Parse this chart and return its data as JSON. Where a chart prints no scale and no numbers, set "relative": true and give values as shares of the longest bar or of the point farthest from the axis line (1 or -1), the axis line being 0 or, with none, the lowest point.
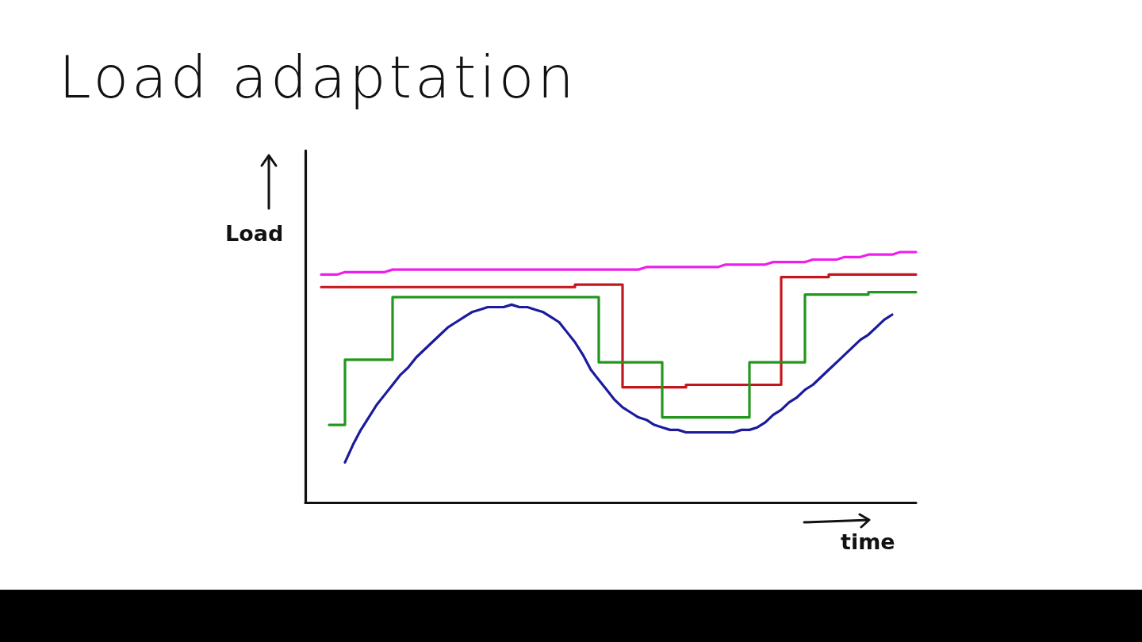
{
  "chart_data": {
    "type": "line",
    "title": "Load adaptation",
    "xlabel": "time",
    "ylabel": "Load",
    "relative": true,
    "marker": "none",
    "categories": [
      null,
      null,
      null,
      null,
      null,
      null,
      null,
      null,
      null,
      null,
      null,
      null,
      null,
      null,
      null,
      null,
      null,
      null,
      null,
      null,
      null,
      null,
      null,
      null,
      null,
      null,
      null,
      null,
      null,
      null,
      null,
      null,
      null,
      null,
      null,
      null,
      null,
      null,
      null,
      null,
      null,
      null,
      null,
      null,
      null,
      null,
      null,
      null,
      null,
      null,
      null,
      null,
      null,
      null,
      null,
      null,
      null,
      null,
      null,
      null,
      null,
      null,
      null,
      null,
      null,
      null,
      null,
      null,
      null,
      null,
      null,
      null,
      null,
      null,
      null,
      null,
      null,
      null
    ],
    "series": [
      {
        "color": "#ee1fee",
        "values": [
          null,
          null,
          0.91,
          0.91,
          0.91,
          0.92,
          0.92,
          0.92,
          0.92,
          0.92,
          0.92,
          0.93,
          0.93,
          0.93,
          0.93,
          0.93,
          0.93,
          0.93,
          0.93,
          0.93,
          0.93,
          0.93,
          0.93,
          0.93,
          0.93,
          0.93,
          0.93,
          0.93,
          0.93,
          0.93,
          0.93,
          0.93,
          0.93,
          0.93,
          0.93,
          0.93,
          0.93,
          0.93,
          0.93,
          0.93,
          0.93,
          0.93,
          0.93,
          0.94,
          0.94,
          0.94,
          0.94,
          0.94,
          0.94,
          0.94,
          0.94,
          0.94,
          0.94,
          0.95,
          0.95,
          0.95,
          0.95,
          0.95,
          0.95,
          0.96,
          0.96,
          0.96,
          0.96,
          0.96,
          0.97,
          0.97,
          0.97,
          0.97,
          0.98,
          0.98,
          0.98,
          0.99,
          0.99,
          0.99,
          0.99,
          1,
          1,
          1
        ]
      },
      {
        "type": "step",
        "color": "#c4161c",
        "values": [
          null,
          null,
          0.86,
          0.86,
          0.86,
          0.86,
          0.86,
          0.86,
          0.86,
          0.86,
          0.86,
          0.86,
          0.86,
          0.86,
          0.86,
          0.86,
          0.86,
          0.86,
          0.86,
          0.86,
          0.86,
          0.86,
          0.86,
          0.86,
          0.86,
          0.86,
          0.86,
          0.86,
          0.86,
          0.86,
          0.86,
          0.86,
          0.86,
          0.86,
          0.87,
          0.87,
          0.87,
          0.87,
          0.87,
          0.87,
          0.46,
          0.46,
          0.46,
          0.46,
          0.46,
          0.46,
          0.46,
          0.46,
          0.47,
          0.47,
          0.47,
          0.47,
          0.47,
          0.47,
          0.47,
          0.47,
          0.47,
          0.47,
          0.47,
          0.47,
          0.9,
          0.9,
          0.9,
          0.9,
          0.9,
          0.9,
          0.91,
          0.91,
          0.91,
          0.91,
          0.91,
          0.91,
          0.91,
          0.91,
          0.91,
          0.91,
          0.91,
          0.91
        ]
      },
      {
        "type": "step",
        "color": "#23961d",
        "values": [
          null,
          null,
          null,
          0.31,
          0.31,
          0.57,
          0.57,
          0.57,
          0.57,
          0.57,
          0.57,
          0.82,
          0.82,
          0.82,
          0.82,
          0.82,
          0.82,
          0.82,
          0.82,
          0.82,
          0.82,
          0.82,
          0.82,
          0.82,
          0.82,
          0.82,
          0.82,
          0.82,
          0.82,
          0.82,
          0.82,
          0.82,
          0.82,
          0.82,
          0.82,
          0.82,
          0.82,
          0.56,
          0.56,
          0.56,
          0.56,
          0.56,
          0.56,
          0.56,
          0.56,
          0.34,
          0.34,
          0.34,
          0.34,
          0.34,
          0.34,
          0.34,
          0.34,
          0.34,
          0.34,
          0.34,
          0.56,
          0.56,
          0.56,
          0.56,
          0.56,
          0.56,
          0.56,
          0.83,
          0.83,
          0.83,
          0.83,
          0.83,
          0.83,
          0.83,
          0.83,
          0.84,
          0.84,
          0.84,
          0.84,
          0.84,
          0.84,
          0.84
        ]
      },
      {
        "color": "#1b1b9c",
        "values": [
          null,
          null,
          null,
          null,
          null,
          0.16,
          0.23,
          0.29,
          0.34,
          0.39,
          0.43,
          0.47,
          0.51,
          0.54,
          0.58,
          0.61,
          0.64,
          0.67,
          0.7,
          0.72,
          0.74,
          0.76,
          0.77,
          0.78,
          0.78,
          0.78,
          0.79,
          0.78,
          0.78,
          0.77,
          0.76,
          0.74,
          0.72,
          0.68,
          0.64,
          0.59,
          0.53,
          0.49,
          0.45,
          0.41,
          0.38,
          0.36,
          0.34,
          0.33,
          0.31,
          0.3,
          0.29,
          0.29,
          0.28,
          0.28,
          0.28,
          0.28,
          0.28,
          0.28,
          0.28,
          0.29,
          0.29,
          0.3,
          0.32,
          0.35,
          0.37,
          0.4,
          0.42,
          0.45,
          0.47,
          0.5,
          0.53,
          0.56,
          0.59,
          0.62,
          0.65,
          0.67,
          0.7,
          0.73,
          0.75,
          null,
          null,
          null
        ]
      }
    ]
  }
}
